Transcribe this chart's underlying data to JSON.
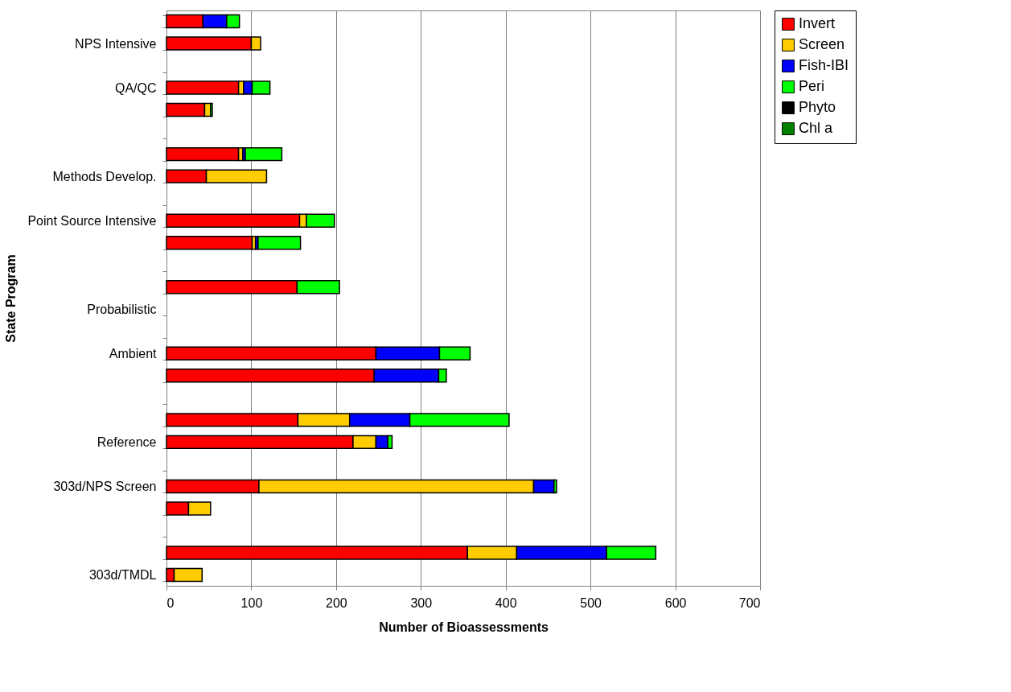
{
  "chart_data": {
    "type": "bar",
    "orientation": "horizontal",
    "stacked": true,
    "xlabel": "Number of Bioassessments",
    "ylabel": "State Program",
    "categories": [
      null,
      "NPS Intensive",
      null,
      "QA/QC",
      null,
      null,
      null,
      "Methods Develop.",
      null,
      "Point Source Intensive",
      null,
      null,
      null,
      "Probabilistic",
      null,
      "Ambient",
      null,
      null,
      null,
      "Reference",
      null,
      "303d/NPS Screen",
      null,
      null,
      null,
      "303d/TMDL"
    ],
    "series": [
      {
        "name": "Invert",
        "color": "#ff0000",
        "values": [
          43,
          100,
          null,
          85,
          45,
          null,
          85,
          47,
          null,
          157,
          101,
          null,
          154,
          null,
          null,
          247,
          245,
          null,
          155,
          220,
          null,
          109,
          26,
          null,
          355,
          9
        ]
      },
      {
        "name": "Screen",
        "color": "#ffcc00",
        "values": [
          null,
          11,
          null,
          6,
          7,
          null,
          5,
          71,
          null,
          8,
          4,
          null,
          null,
          null,
          null,
          null,
          null,
          null,
          61,
          27,
          null,
          324,
          26,
          null,
          58,
          33
        ]
      },
      {
        "name": "Fish-IBI",
        "color": "#0000ff",
        "values": [
          28,
          null,
          null,
          10,
          null,
          null,
          3,
          null,
          null,
          null,
          3,
          null,
          null,
          null,
          null,
          75,
          76,
          null,
          71,
          14,
          null,
          24,
          null,
          null,
          106,
          null
        ]
      },
      {
        "name": "Peri",
        "color": "#00ff00",
        "values": [
          15,
          null,
          null,
          21,
          2,
          null,
          43,
          null,
          null,
          33,
          50,
          null,
          50,
          null,
          null,
          36,
          9,
          null,
          117,
          5,
          null,
          3,
          null,
          null,
          58,
          null
        ]
      },
      {
        "name": "Phyto",
        "color": "#000000",
        "values": [
          null,
          null,
          null,
          null,
          null,
          null,
          null,
          null,
          null,
          null,
          null,
          null,
          null,
          null,
          null,
          null,
          null,
          null,
          null,
          null,
          null,
          null,
          null,
          null,
          null,
          null
        ]
      },
      {
        "name": "Chl a",
        "color": "#008000",
        "values": [
          null,
          null,
          null,
          null,
          null,
          null,
          null,
          null,
          null,
          null,
          null,
          null,
          null,
          null,
          null,
          null,
          null,
          null,
          null,
          null,
          null,
          null,
          null,
          null,
          null,
          null
        ]
      }
    ],
    "xlim": [
      0,
      700
    ],
    "xticks": [
      0,
      100,
      200,
      300,
      400,
      500,
      600,
      700
    ],
    "grid": "x",
    "legend": "right"
  }
}
